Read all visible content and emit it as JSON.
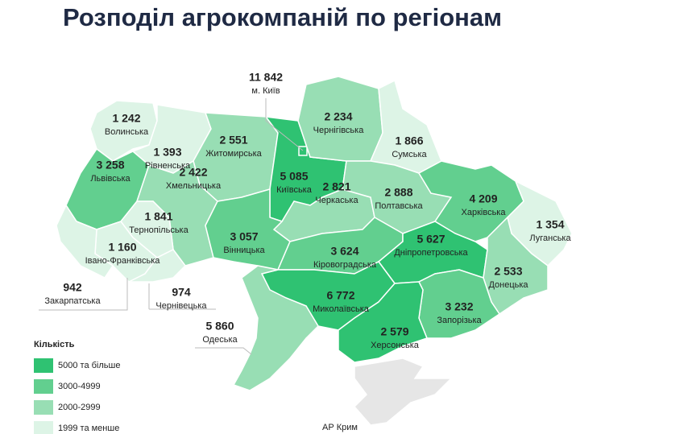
{
  "title": "Розподіл агрокомпаній по регіонам",
  "legend": {
    "title": "Кількість",
    "items": [
      {
        "label": "5000 та більше",
        "color": "#2fc272"
      },
      {
        "label": "3000-4999",
        "color": "#62cf8f"
      },
      {
        "label": "2000-2999",
        "color": "#98deb4"
      },
      {
        "label": "1999 та менше",
        "color": "#ddf4e6"
      }
    ]
  },
  "regions": [
    {
      "name": "Волинська",
      "value": 1242,
      "value_label": "1 242",
      "color": "#ddf4e6"
    },
    {
      "name": "Рівненська",
      "value": 1393,
      "value_label": "1 393",
      "color": "#ddf4e6"
    },
    {
      "name": "Житомирська",
      "value": 2551,
      "value_label": "2 551",
      "color": "#98deb4"
    },
    {
      "name": "Київська",
      "value": 5085,
      "value_label": "5 085",
      "color": "#2fc272"
    },
    {
      "name": "м. Київ",
      "value": 11842,
      "value_label": "11 842",
      "color": "#2fc272"
    },
    {
      "name": "Чернігівська",
      "value": 2234,
      "value_label": "2 234",
      "color": "#98deb4"
    },
    {
      "name": "Сумська",
      "value": 1866,
      "value_label": "1 866",
      "color": "#ddf4e6"
    },
    {
      "name": "Львівська",
      "value": 3258,
      "value_label": "3 258",
      "color": "#62cf8f"
    },
    {
      "name": "Хмельницька",
      "value": 2422,
      "value_label": "2 422",
      "color": "#98deb4"
    },
    {
      "name": "Тернопільська",
      "value": 1841,
      "value_label": "1 841",
      "color": "#ddf4e6"
    },
    {
      "name": "Черкаська",
      "value": 2821,
      "value_label": "2 821",
      "color": "#98deb4"
    },
    {
      "name": "Полтавська",
      "value": 2888,
      "value_label": "2 888",
      "color": "#98deb4"
    },
    {
      "name": "Харківська",
      "value": 4209,
      "value_label": "4 209",
      "color": "#62cf8f"
    },
    {
      "name": "Луганська",
      "value": 1354,
      "value_label": "1 354",
      "color": "#ddf4e6"
    },
    {
      "name": "Вінницька",
      "value": 3057,
      "value_label": "3 057",
      "color": "#62cf8f"
    },
    {
      "name": "Кіровоградська",
      "value": 3624,
      "value_label": "3 624",
      "color": "#62cf8f"
    },
    {
      "name": "Дніпропетровська",
      "value": 5627,
      "value_label": "5 627",
      "color": "#2fc272"
    },
    {
      "name": "Донецька",
      "value": 2533,
      "value_label": "2 533",
      "color": "#98deb4"
    },
    {
      "name": "Івано-Франківська",
      "value": 1160,
      "value_label": "1 160",
      "color": "#ddf4e6"
    },
    {
      "name": "Закарпатська",
      "value": 942,
      "color": "#ddf4e6"
    },
    {
      "name": "Чернівецька",
      "value": 974,
      "color": "#ddf4e6"
    },
    {
      "name": "Миколаївська",
      "value": 6772,
      "value_label": "6 772",
      "color": "#2fc272"
    },
    {
      "name": "Запорізька",
      "value": 3232,
      "value_label": "3 232",
      "color": "#62cf8f"
    },
    {
      "name": "Одеська",
      "value": 5860,
      "value_label": "5 860",
      "color": "#2fc272"
    },
    {
      "name": "Херсонська",
      "value": 2579,
      "value_label": "2 579",
      "color": "#98deb4"
    },
    {
      "name": "АР Крим",
      "color": "#e6e6e6"
    }
  ]
}
